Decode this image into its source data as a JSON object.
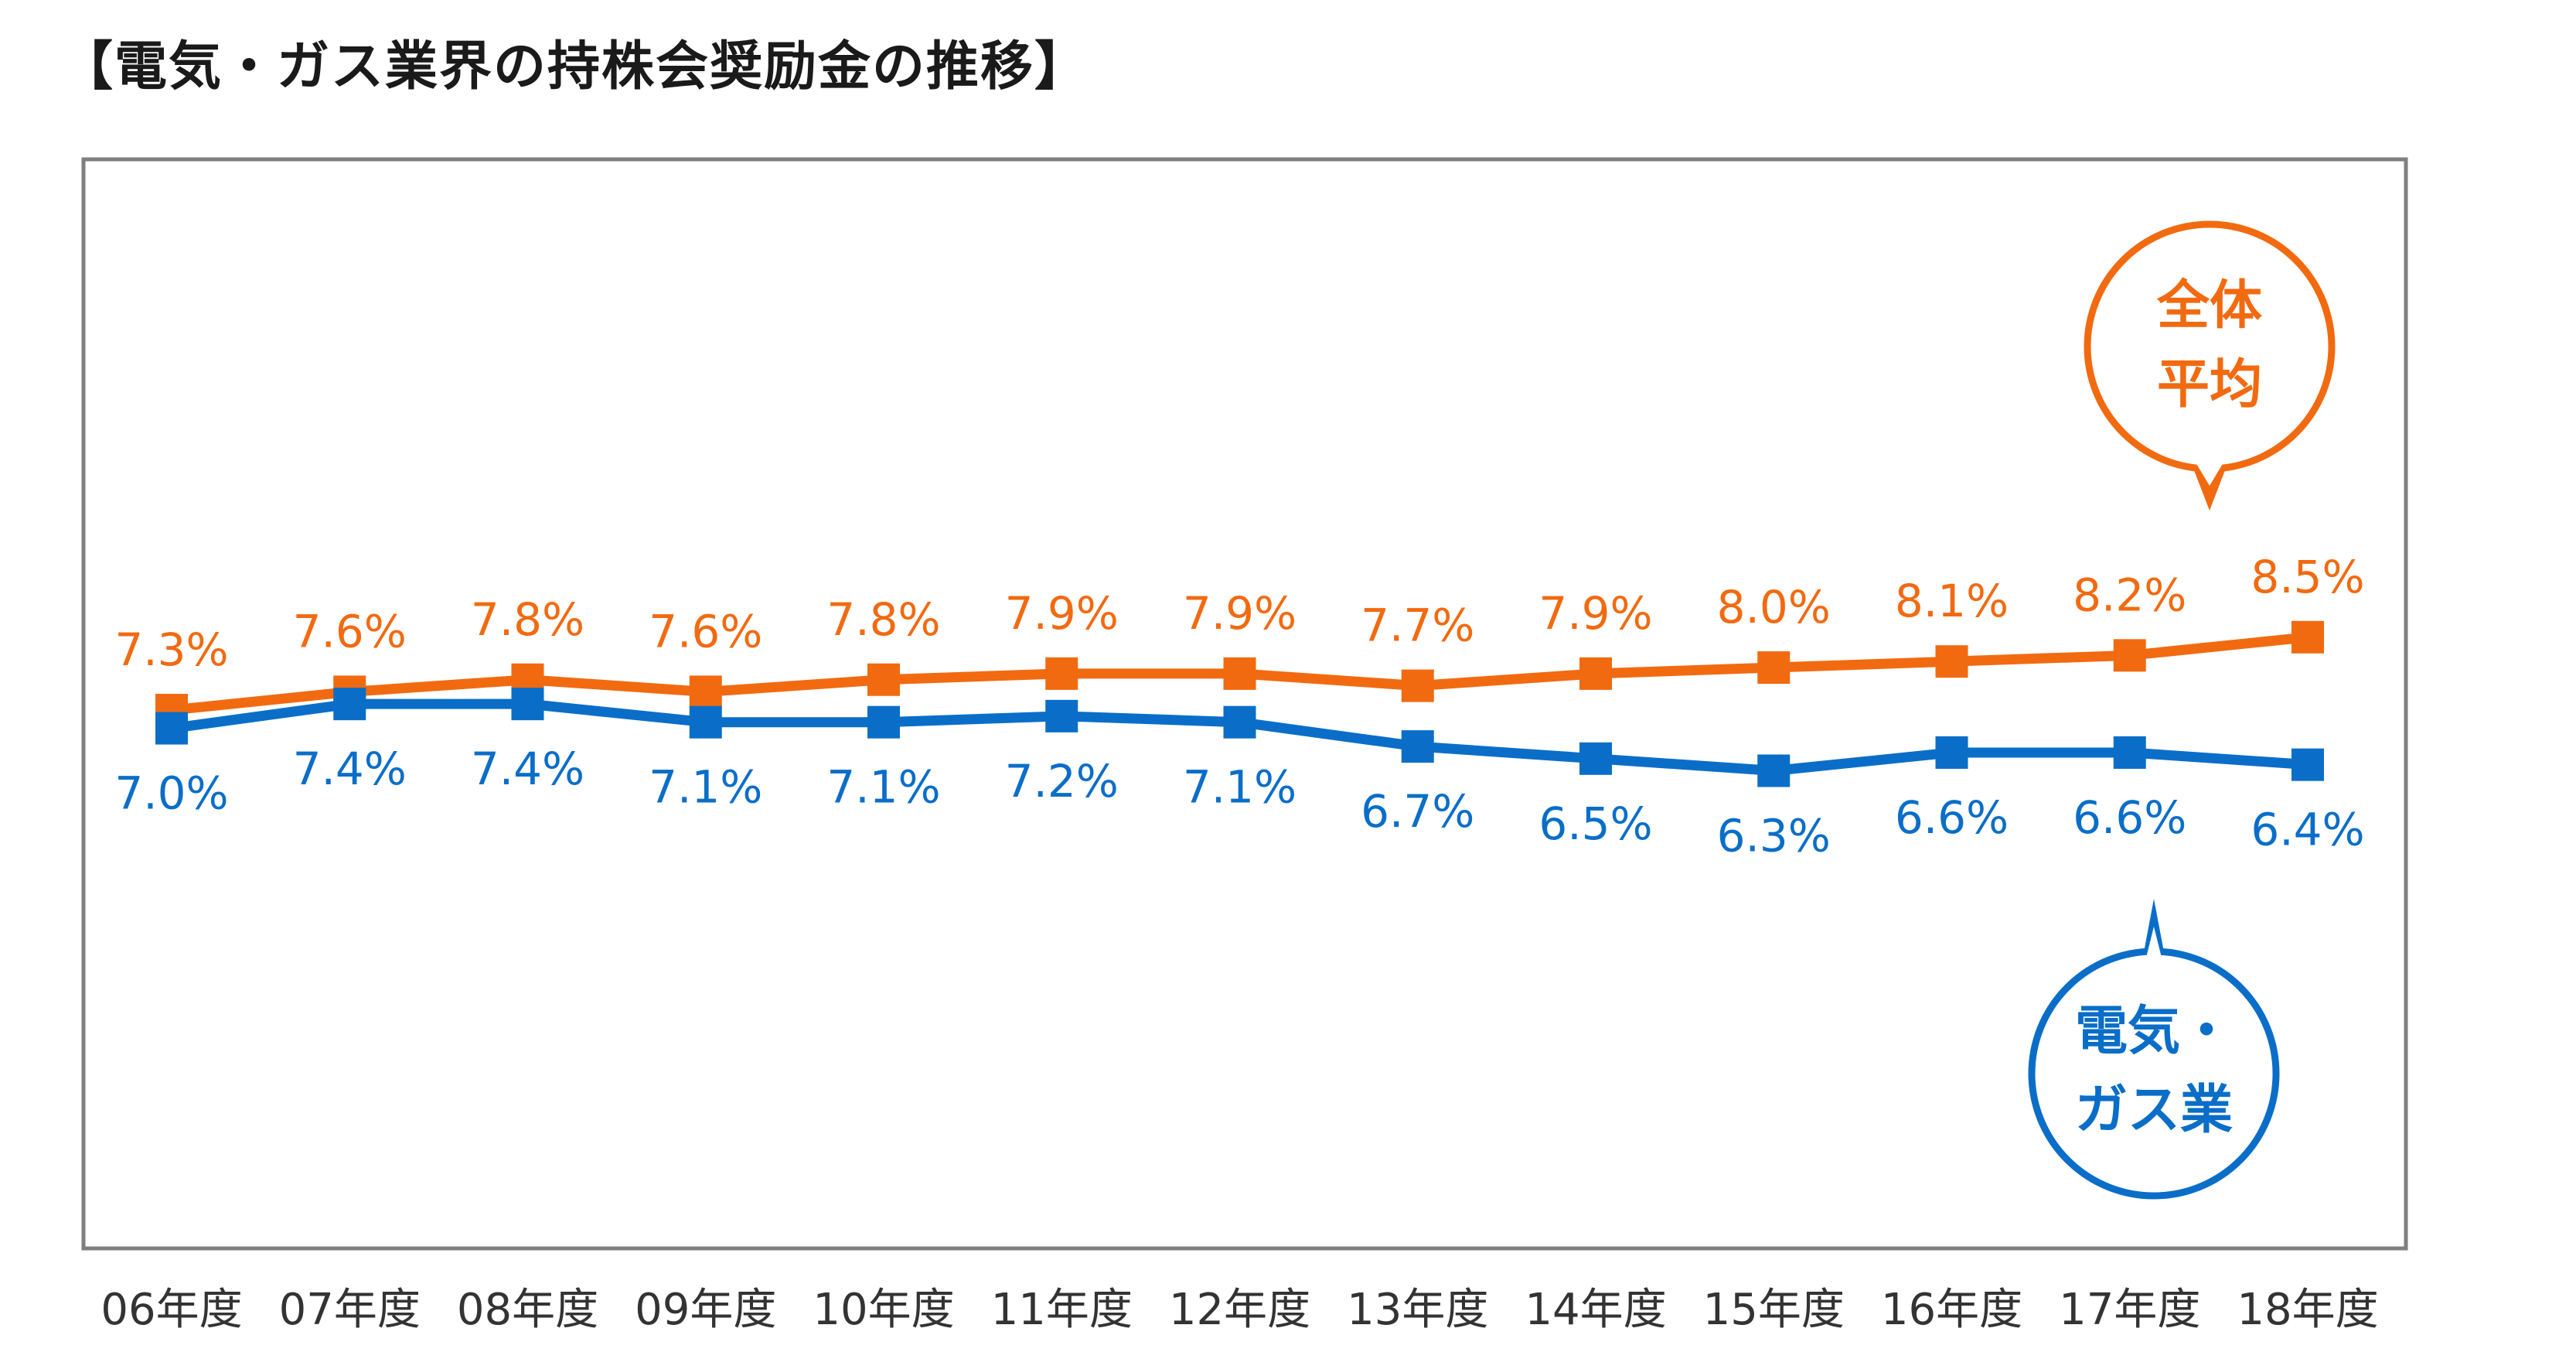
{
  "title": "【電気・ガス業界の持株会奨励金の推移】",
  "chart_data": {
    "type": "line",
    "title": "【電気・ガス業界の持株会奨励金の推移】",
    "categories": [
      "06年度",
      "07年度",
      "08年度",
      "09年度",
      "10年度",
      "11年度",
      "12年度",
      "13年度",
      "14年度",
      "15年度",
      "16年度",
      "17年度",
      "18年度"
    ],
    "series": [
      {
        "name": "全体平均",
        "color": "#f26a10",
        "values": [
          7.3,
          7.6,
          7.8,
          7.6,
          7.8,
          7.9,
          7.9,
          7.7,
          7.9,
          8.0,
          8.1,
          8.2,
          8.5
        ],
        "labels": [
          "7.3%",
          "7.6%",
          "7.8%",
          "7.6%",
          "7.8%",
          "7.9%",
          "7.9%",
          "7.7%",
          "7.9%",
          "8.0%",
          "8.1%",
          "8.2%",
          "8.5%"
        ]
      },
      {
        "name": "電気・ガス業",
        "color": "#0a6ec8",
        "values": [
          7.0,
          7.4,
          7.4,
          7.1,
          7.1,
          7.2,
          7.1,
          6.7,
          6.5,
          6.3,
          6.6,
          6.6,
          6.4
        ],
        "labels": [
          "7.0%",
          "7.4%",
          "7.4%",
          "7.1%",
          "7.1%",
          "7.2%",
          "7.1%",
          "6.7%",
          "6.5%",
          "6.3%",
          "6.6%",
          "6.6%",
          "6.4%"
        ]
      }
    ],
    "callouts": {
      "overall": [
        "全体",
        "平均"
      ],
      "utility": [
        "電気・",
        "ガス業"
      ]
    },
    "grid": false,
    "legend": "callouts"
  }
}
